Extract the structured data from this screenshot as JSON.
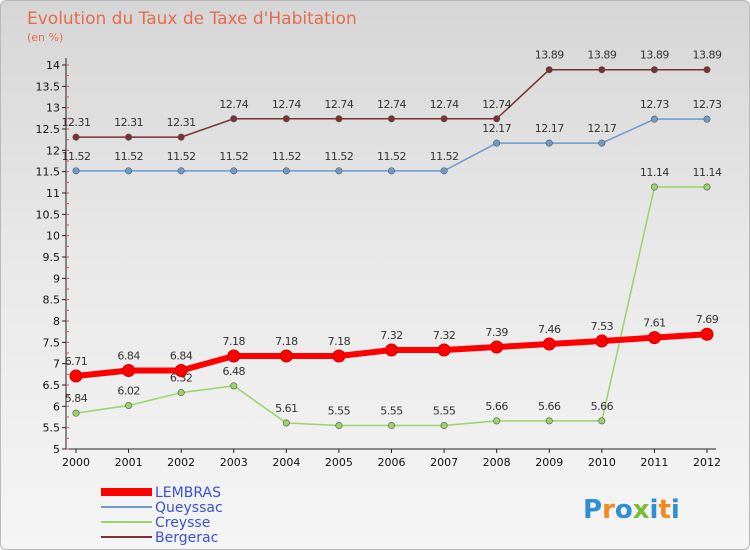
{
  "chart_data": {
    "type": "line",
    "title": "Evolution du Taux de Taxe d'Habitation",
    "ylabel": "(en %)",
    "categories": [
      "2000",
      "2001",
      "2002",
      "2003",
      "2004",
      "2005",
      "2006",
      "2007",
      "2008",
      "2009",
      "2010",
      "2011",
      "2012"
    ],
    "ylim": [
      5,
      14
    ],
    "yticks": [
      "5",
      "5.5",
      "6",
      "6.5",
      "7",
      "7.5",
      "8",
      "8.5",
      "9",
      "9.5",
      "10",
      "10.5",
      "11",
      "11.5",
      "12",
      "12.5",
      "13",
      "13.5",
      "14"
    ],
    "grid": false,
    "legend_position": "bottom-left",
    "series": [
      {
        "name": "LEMBRAS",
        "color": "#ff0000",
        "values": [
          6.71,
          6.84,
          6.84,
          7.18,
          7.18,
          7.18,
          7.32,
          7.32,
          7.39,
          7.46,
          7.53,
          7.61,
          7.69
        ],
        "labels": [
          "6.71",
          "6.84",
          "6.84",
          "7.18",
          "7.18",
          "7.18",
          "7.32",
          "7.32",
          "7.39",
          "7.46",
          "7.53",
          "7.61",
          "7.69"
        ]
      },
      {
        "name": "Queyssac",
        "color": "#6a9ccd",
        "values": [
          11.52,
          11.52,
          11.52,
          11.52,
          11.52,
          11.52,
          11.52,
          11.52,
          12.17,
          12.17,
          12.17,
          12.73,
          12.73
        ],
        "labels": [
          "11.52",
          "11.52",
          "11.52",
          "11.52",
          "11.52",
          "11.52",
          "11.52",
          "11.52",
          "12.17",
          "12.17",
          "12.17",
          "12.73",
          "12.73"
        ]
      },
      {
        "name": "Creysse",
        "color": "#98d468",
        "values": [
          5.84,
          6.02,
          6.32,
          6.48,
          5.61,
          5.55,
          5.55,
          5.55,
          5.66,
          5.66,
          5.66,
          11.14,
          11.14
        ],
        "labels": [
          "5.84",
          "6.02",
          "6.32",
          "6.48",
          "5.61",
          "5.55",
          "5.55",
          "5.55",
          "5.66",
          "5.66",
          "5.66",
          "11.14",
          "11.14"
        ]
      },
      {
        "name": "Bergerac",
        "color": "#7d3030",
        "values": [
          12.31,
          12.31,
          12.31,
          12.74,
          12.74,
          12.74,
          12.74,
          12.74,
          12.74,
          13.89,
          13.89,
          13.89,
          13.89
        ],
        "labels": [
          "12.31",
          "12.31",
          "12.31",
          "12.74",
          "12.74",
          "12.74",
          "12.74",
          "12.74",
          "12.74",
          "13.89",
          "13.89",
          "13.89",
          "13.89"
        ]
      }
    ]
  },
  "logo": {
    "text": "Proxiti"
  }
}
